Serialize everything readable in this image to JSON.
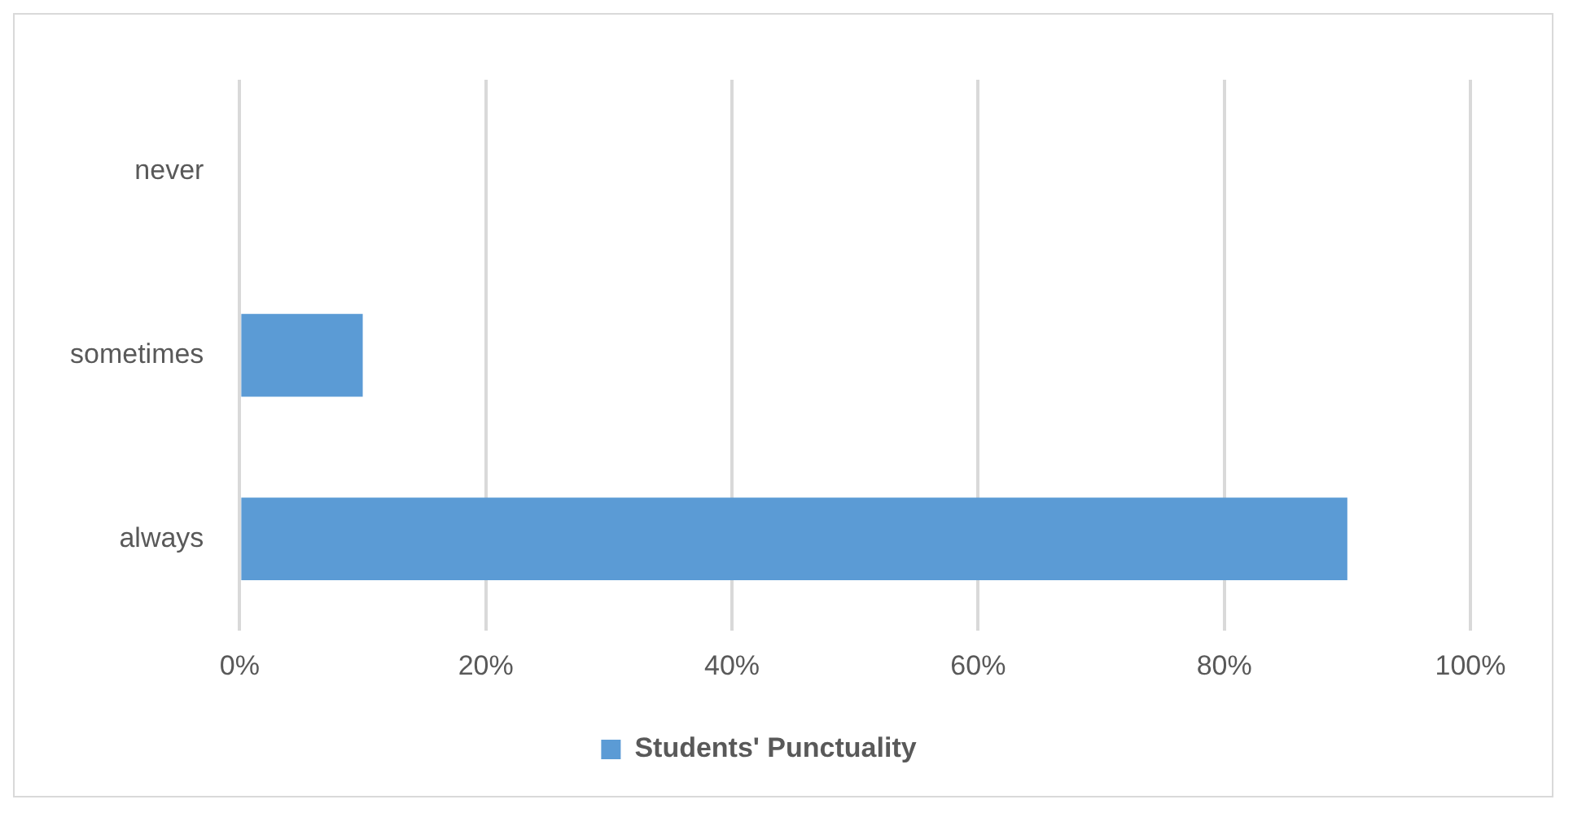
{
  "chart_data": {
    "type": "bar",
    "orientation": "horizontal",
    "categories": [
      "never",
      "sometimes",
      "always"
    ],
    "series": [
      {
        "name": "Students' Punctuality",
        "color": "#5b9bd5",
        "values": [
          0,
          10,
          90
        ]
      }
    ],
    "xlim": [
      0,
      100
    ],
    "xticks": [
      {
        "value": 0,
        "label": "0%"
      },
      {
        "value": 20,
        "label": "20%"
      },
      {
        "value": 40,
        "label": "40%"
      },
      {
        "value": 60,
        "label": "60%"
      },
      {
        "value": 80,
        "label": "80%"
      },
      {
        "value": 100,
        "label": "100%"
      }
    ],
    "grid": "x",
    "legend": "bottom"
  }
}
